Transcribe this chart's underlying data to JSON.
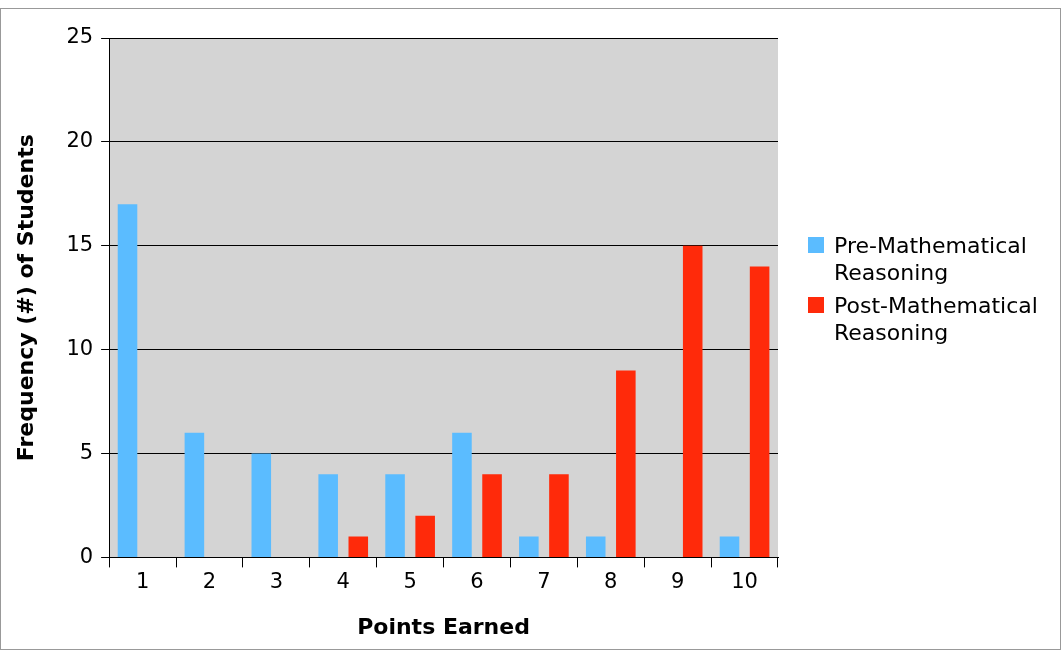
{
  "chart_data": {
    "type": "bar",
    "xlabel": "Points Earned",
    "ylabel": "Frequency (#) of Students",
    "categories": [
      "1",
      "2",
      "3",
      "4",
      "5",
      "6",
      "7",
      "8",
      "9",
      "10"
    ],
    "series": [
      {
        "name": "Pre-Mathematical Reasoning",
        "color": "#5bbcff",
        "values": [
          17,
          6,
          5,
          4,
          4,
          6,
          1,
          1,
          0,
          1
        ]
      },
      {
        "name": "Post-Mathematical Reasoning",
        "color": "#ff2a0a",
        "values": [
          0,
          0,
          0,
          1,
          2,
          4,
          4,
          9,
          15,
          14
        ]
      }
    ],
    "ylim": [
      0,
      25
    ],
    "yticks": [
      0,
      5,
      10,
      15,
      20,
      25
    ],
    "grid": "y",
    "legend": "right"
  }
}
